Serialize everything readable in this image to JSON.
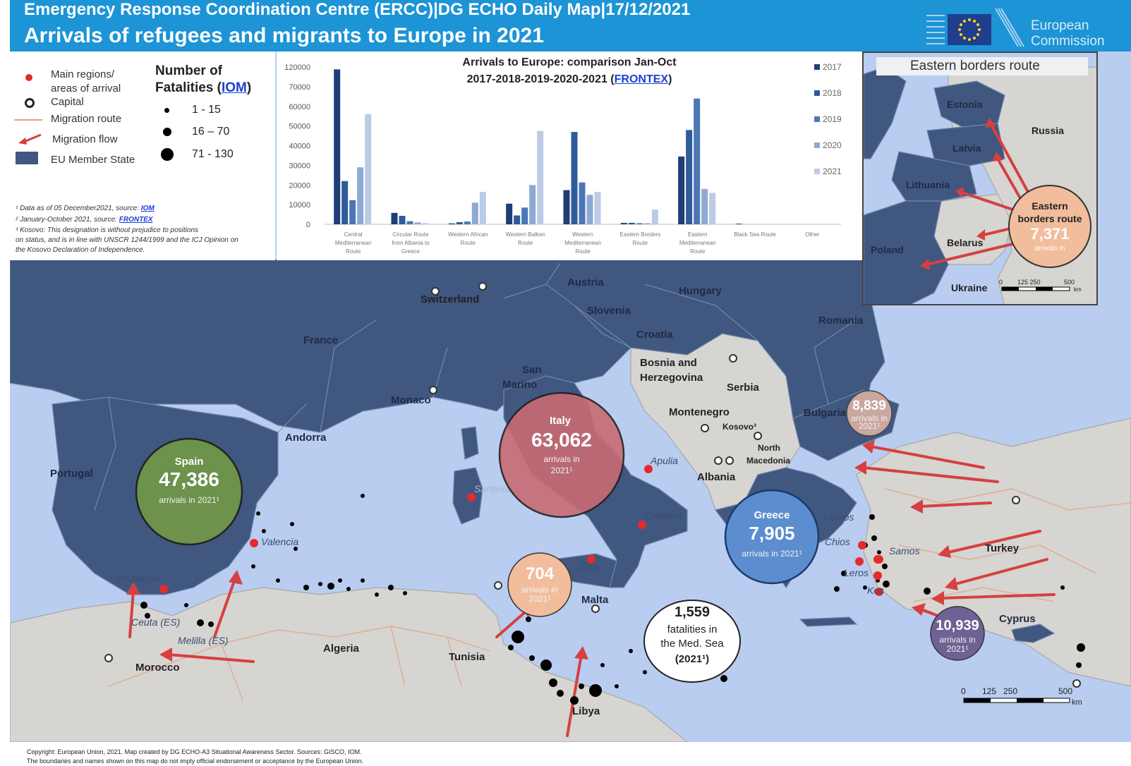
{
  "header": {
    "top_line": "Emergency Response Coordination Centre (ERCC)|DG ECHO Daily Map|17/12/2021",
    "title": "Arrivals of refugees and migrants to Europe in 2021",
    "logo_text": "European\nCommission"
  },
  "legend": {
    "items": [
      "Main regions/",
      "areas of arrival",
      "Capital",
      "Migration route",
      "Migration flow",
      "EU Member State"
    ],
    "fatalities_title": "Number of",
    "fatalities_title2": "Fatalities (",
    "fatalities_link": "IOM",
    "fatalities_title_end": ")",
    "fatality_classes": [
      "1 - 15",
      "16 – 70",
      "71 - 130"
    ],
    "notes": [
      "¹ Data as of 05 December2021, source: ",
      "² January-October 2021, source: ",
      "³ Kosovo: This designation is without prejudice to positions",
      "on status, and is in line with UNSCR 1244/1999 and the ICJ Opinion on",
      "the Kosovo Declaration of Independence."
    ],
    "note_links": [
      "IOM",
      "FRONTEX"
    ]
  },
  "chart_data": {
    "type": "bar",
    "title": "Arrivals to Europe: comparison Jan-Oct",
    "title_line2": "2017-2018-2019-2020-2021 (",
    "title_link": "FRONTEX",
    "title_end": ")",
    "yticks": [
      "0",
      "10000",
      "20000",
      "30000",
      "40000",
      "50000",
      "60000",
      "70000",
      "120000"
    ],
    "axis_break": [
      70000,
      120000
    ],
    "categories": [
      [
        "Central",
        "Mediterranean",
        "Route"
      ],
      [
        "Circular Route",
        "from Albania to",
        "Greece"
      ],
      [
        "Western African",
        "Route"
      ],
      [
        "Western Balkan",
        "Route"
      ],
      [
        "Western",
        "Mediterranean",
        "Route"
      ],
      [
        "Eastern Borders",
        "Route"
      ],
      [
        "Eastern",
        "Mediterranean",
        "Route"
      ],
      [
        "Black Sea Route"
      ],
      [
        "Other"
      ]
    ],
    "series": [
      {
        "name": "2017",
        "color": "#1f3e74",
        "values": [
          114000,
          5800,
          450,
          10500,
          17400,
          700,
          34500,
          300,
          0
        ]
      },
      {
        "name": "2018",
        "color": "#2e5c9a",
        "values": [
          22000,
          4300,
          1100,
          4500,
          47000,
          750,
          48000,
          0,
          0
        ]
      },
      {
        "name": "2019",
        "color": "#4b77b5",
        "values": [
          12300,
          1600,
          1400,
          8500,
          21300,
          550,
          64000,
          0,
          0
        ]
      },
      {
        "name": "2020",
        "color": "#8ea9d4",
        "values": [
          29000,
          1000,
          11000,
          20000,
          15000,
          550,
          18000,
          0,
          0
        ]
      },
      {
        "name": "2021",
        "color": "#bccbe5",
        "values": [
          56000,
          600,
          16500,
          47500,
          16500,
          7500,
          16000,
          0,
          0
        ]
      }
    ]
  },
  "inset": {
    "title": "Eastern borders route",
    "countries": [
      "Estonia",
      "Russia",
      "Latvia",
      "Lithuania",
      "Belarus",
      "Poland",
      "Ukraine"
    ],
    "bubble_title1": "Eastern",
    "bubble_title2": "borders route",
    "bubble_value": "7,371",
    "bubble_sub": "arrivals in",
    "scale": [
      "0",
      "125 250",
      "500",
      "km"
    ]
  },
  "map": {
    "countries": [
      "Austria",
      "Hungary",
      "Switzerland",
      "Slovenia",
      "Romania",
      "France",
      "Croatia",
      "Bosnia and",
      "Herzegovina",
      "Serbia",
      "San",
      "Marino",
      "Monaco",
      "Montenegro",
      "Kosovo³",
      "Bulgaria",
      "Andorra",
      "North",
      "Macedonia",
      "Portugal",
      "Albania",
      "Turkey",
      "Malta",
      "Cyprus",
      "Algeria",
      "Tunisia",
      "Morocco",
      "Libya"
    ],
    "regions": [
      "Apulia",
      "Sardinia",
      "Calabria",
      "Valencia",
      "Lesvos",
      "Chios",
      "Samos",
      "Andalucia",
      "Leros",
      "Kos",
      "Sicily",
      "Ceuta (ES)",
      "Melilla (ES)"
    ],
    "bubbles": [
      {
        "place": "Spain",
        "value": "47,386",
        "sub": "arrivals in 2021¹"
      },
      {
        "place": "Italy",
        "value": "63,062",
        "sub": "arrivals in",
        "sub2": "2021¹"
      },
      {
        "place": "Greece",
        "value": "7,905",
        "sub": "arrivals in 2021¹"
      },
      {
        "place": "",
        "value": "8,839",
        "sub": "arrivals in",
        "sub2": "2021¹"
      },
      {
        "place": "",
        "value": "704",
        "sub": "arrivals in",
        "sub2": "2021¹"
      },
      {
        "place": "",
        "value": "10,939",
        "sub": "arrivals in",
        "sub2": "2021¹"
      }
    ],
    "fatalities_box": {
      "value": "1,559",
      "line1": "fatalities in",
      "line2": "the Med. Sea",
      "line3": "(2021¹)"
    },
    "scale": [
      "0",
      "125",
      "250",
      "500",
      "km"
    ]
  },
  "copyright": "Copyright: European Union, 2021. Map created by DG ECHO-A3 Situational Awareness Sector. Sources: GISCO, IOM.\nThe boundaries and names shown on this map do not imply official endorsement or acceptance by the European Union."
}
